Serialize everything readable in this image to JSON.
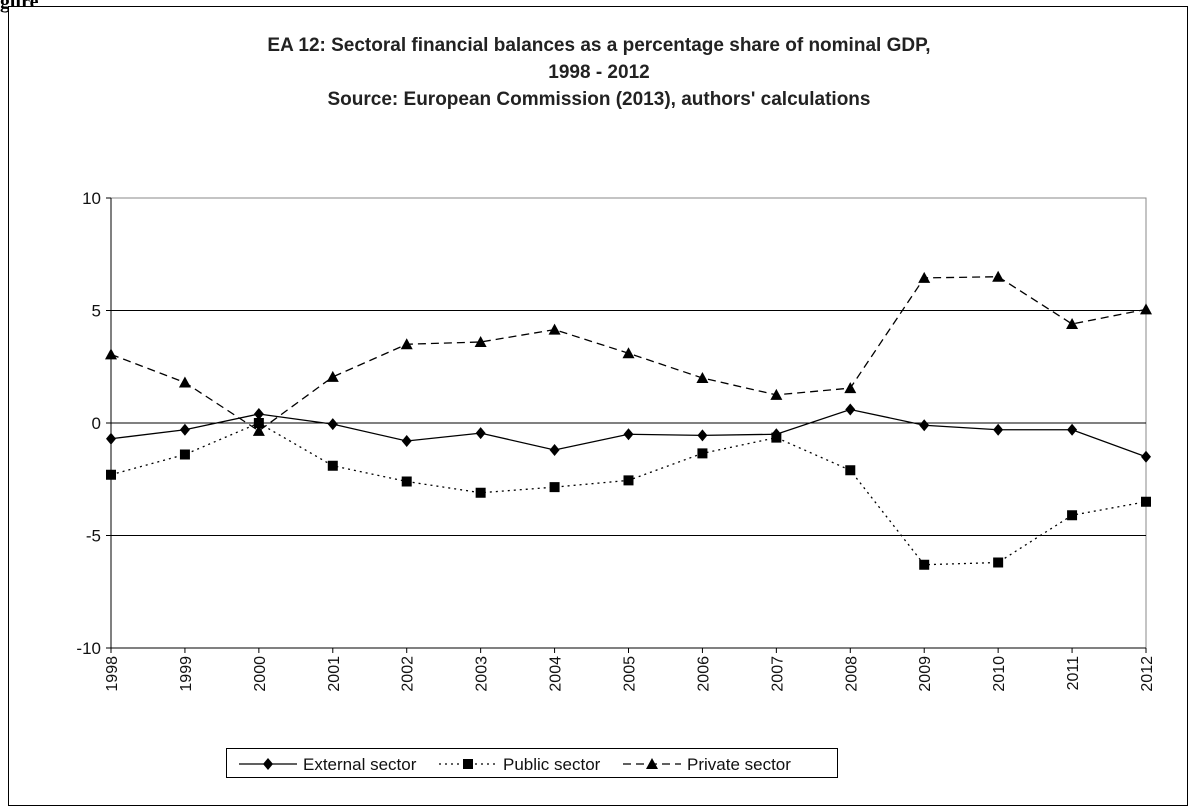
{
  "figure_label": "gure",
  "chart_data": {
    "type": "line",
    "title_lines": [
      "EA 12: Sectoral financial balances as a percentage share of nominal GDP,",
      "1998 - 2012",
      "Source: European Commission (2013), authors' calculations"
    ],
    "xlabel": "",
    "ylabel": "",
    "categories": [
      "1998",
      "1999",
      "2000",
      "2001",
      "2002",
      "2003",
      "2004",
      "2005",
      "2006",
      "2007",
      "2008",
      "2009",
      "2010",
      "2011",
      "2012"
    ],
    "ylim": [
      -10,
      10
    ],
    "yticks": [
      -10,
      -5,
      0,
      5,
      10
    ],
    "gridlines": [
      -5,
      0,
      5
    ],
    "legend_position": "bottom",
    "series": [
      {
        "name": "External sector",
        "marker": "diamond",
        "dash": "solid",
        "values": [
          -0.7,
          -0.3,
          0.4,
          -0.05,
          -0.8,
          -0.45,
          -1.2,
          -0.5,
          -0.55,
          -0.5,
          0.6,
          -0.1,
          -0.3,
          -0.3,
          -1.5
        ]
      },
      {
        "name": "Public sector",
        "marker": "square",
        "dash": "dotted",
        "values": [
          -2.3,
          -1.4,
          0.0,
          -1.9,
          -2.6,
          -3.1,
          -2.85,
          -2.55,
          -1.35,
          -0.65,
          -2.1,
          -6.3,
          -6.2,
          -4.1,
          -3.5
        ]
      },
      {
        "name": "Private sector",
        "marker": "triangle",
        "dash": "dashed",
        "values": [
          3.05,
          1.8,
          -0.35,
          2.05,
          3.5,
          3.6,
          4.15,
          3.1,
          2.0,
          1.25,
          1.55,
          6.45,
          6.5,
          4.4,
          5.05
        ]
      }
    ],
    "colors": {
      "line": "#000000",
      "grid": "#000000",
      "axis": "#888888"
    }
  }
}
